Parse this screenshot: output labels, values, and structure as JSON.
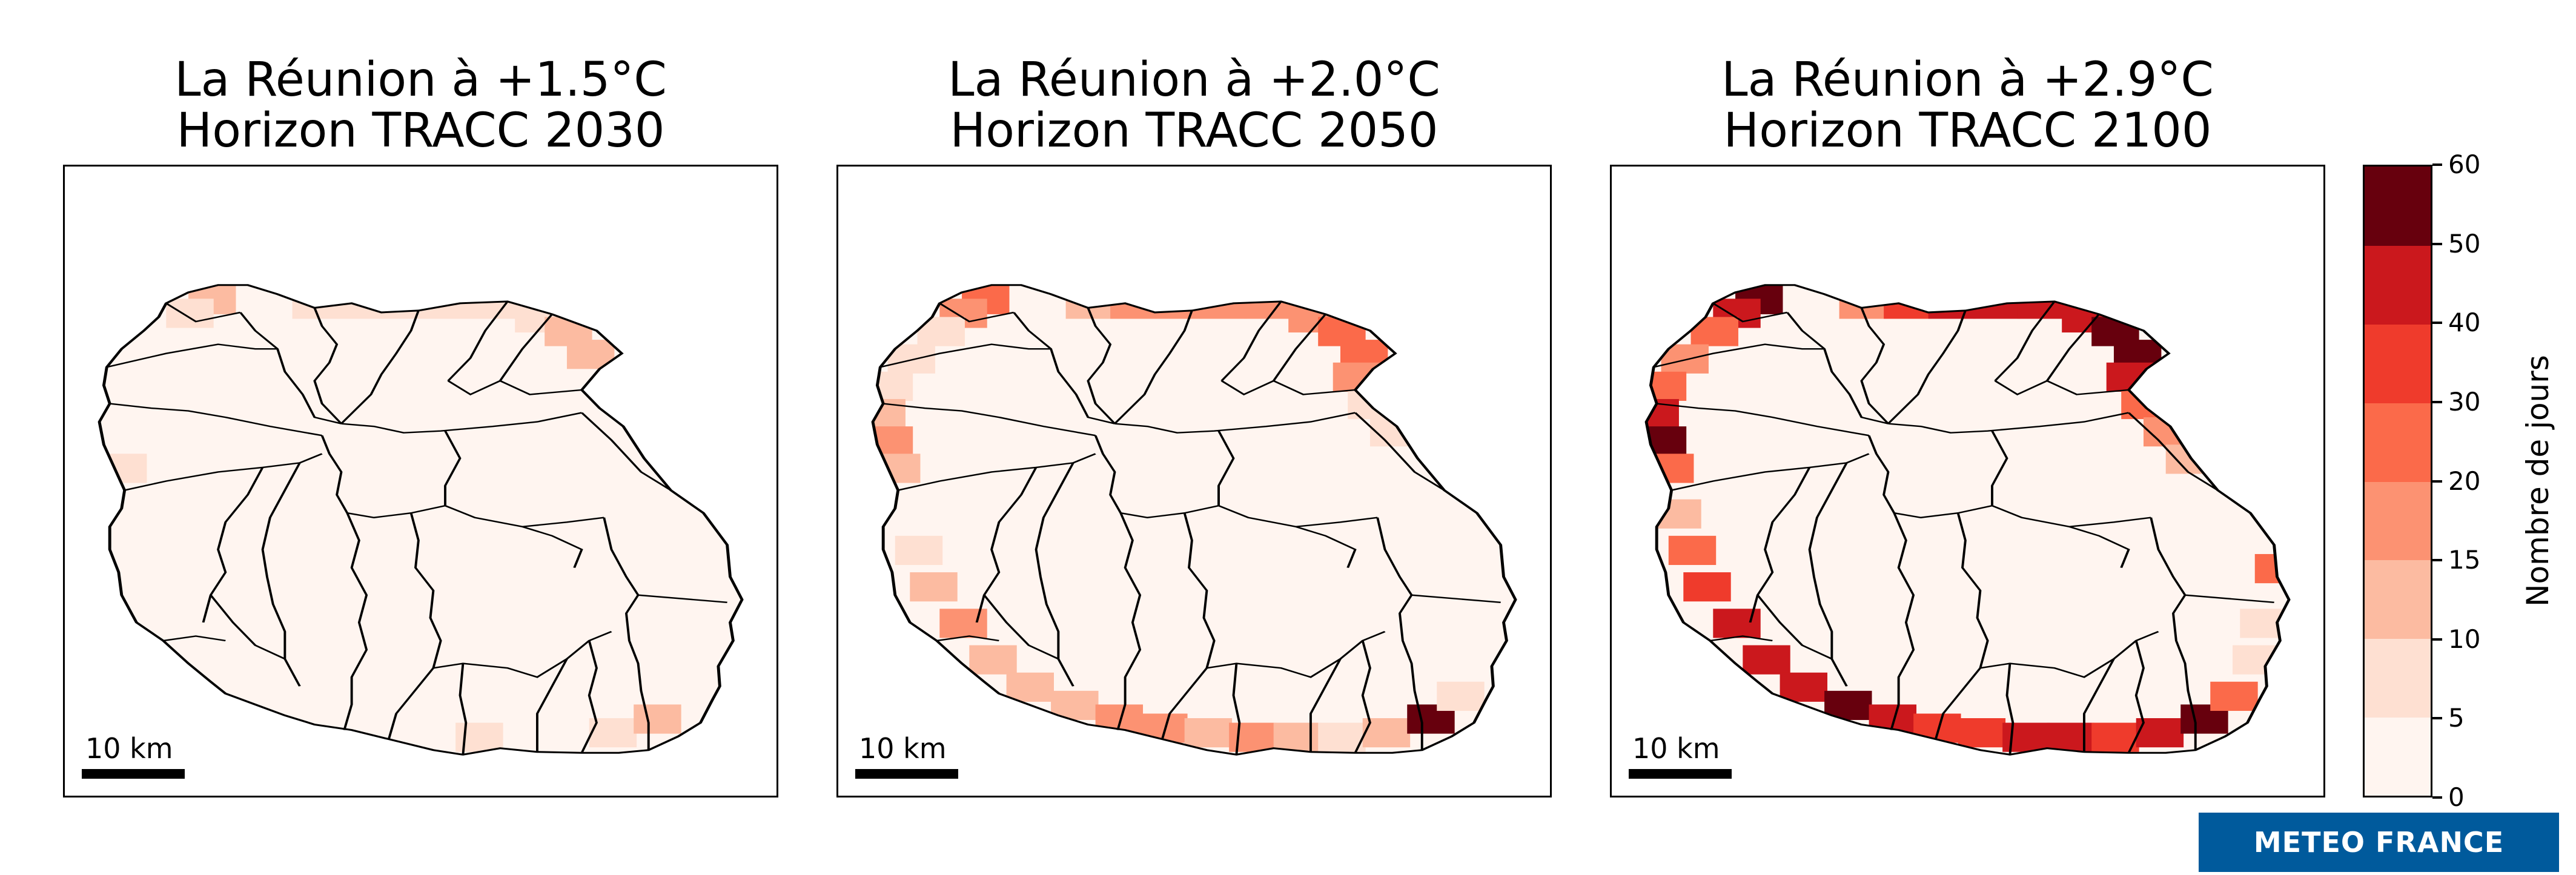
{
  "panels": [
    {
      "title_line1": "La Réunion à +1.5°C",
      "title_line2": "Horizon TRACC 2030",
      "scale_label": "10 km",
      "severity": 1
    },
    {
      "title_line1": "La Réunion à +2.0°C",
      "title_line2": "Horizon TRACC 2050",
      "scale_label": "10 km",
      "severity": 2
    },
    {
      "title_line1": "La Réunion à +2.9°C",
      "title_line2": "Horizon TRACC 2100",
      "scale_label": "10 km",
      "severity": 3
    }
  ],
  "colorbar": {
    "label": "Nombre de jours",
    "ticks": [
      "0",
      "5",
      "10",
      "15",
      "20",
      "30",
      "40",
      "50",
      "60"
    ],
    "colors": [
      "#fff5f0",
      "#fee0d2",
      "#fcbba1",
      "#fc9272",
      "#fb6a4a",
      "#ef3b2c",
      "#cb181d",
      "#67000d"
    ]
  },
  "logo": {
    "text": "METEO FRANCE",
    "color": "#005a9c"
  }
}
